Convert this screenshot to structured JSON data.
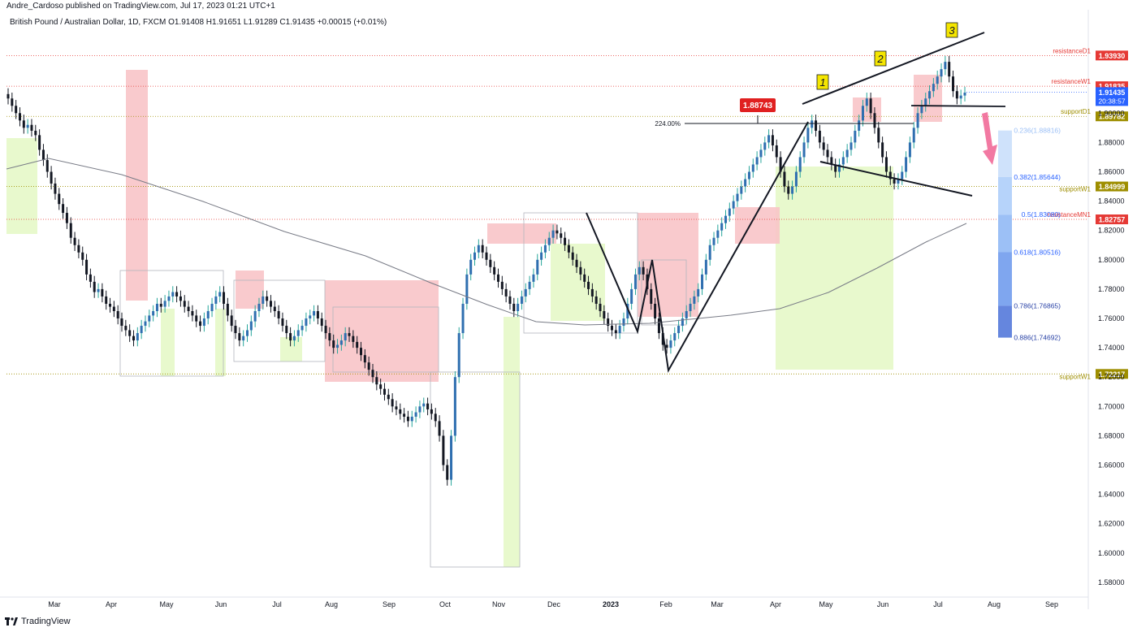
{
  "header": {
    "published": "Andre_Cardoso published on TradingView.com, Jul 17, 2023 01:21 UTC+1",
    "symbol_line": "British Pound / Australian Dollar, 1D, FXCM  O1.91408  H1.91651  L1.91289  C1.91435  +0.00015 (+0.01%)"
  },
  "footer": {
    "brand": "TradingView"
  },
  "colors": {
    "up": "#26a69a",
    "down": "#131722",
    "resistance": "#e53935",
    "support": "#9e8e00",
    "res_zone": "#f8c4c8",
    "sup_zone": "#e6f8c8",
    "ma": "#787b86",
    "last": "#2962ff",
    "fib": "#2962ff"
  },
  "chart_data": {
    "type": "candlestick",
    "title": "British Pound / Australian Dollar, 1D, FXCM",
    "ylim": [
      1.57,
      1.955
    ],
    "y_ticks": [
      "1.58000",
      "1.60000",
      "1.62000",
      "1.64000",
      "1.66000",
      "1.68000",
      "1.70000",
      "1.72000",
      "1.74000",
      "1.76000",
      "1.78000",
      "1.80000",
      "1.82000",
      "1.84000",
      "1.86000",
      "1.88000",
      "1.90000"
    ],
    "x_ticks": [
      "Mar",
      "Apr",
      "May",
      "Jun",
      "Jul",
      "Aug",
      "Sep",
      "Oct",
      "Nov",
      "Dec",
      "2023",
      "Feb",
      "Mar",
      "Apr",
      "May",
      "Jun",
      "Jul",
      "Aug",
      "Sep"
    ],
    "levels": [
      {
        "label": "resistanceD1",
        "value": 1.9393,
        "tag": "1.93930",
        "kind": "resistance"
      },
      {
        "label": "resistanceW1",
        "value": 1.91835,
        "tag": "1.91835",
        "kind": "resistance"
      },
      {
        "label": "supportD1",
        "value": 1.89782,
        "tag": "1.89782",
        "kind": "support"
      },
      {
        "label": "supportW1",
        "value": 1.84999,
        "tag": "1.84999",
        "kind": "support"
      },
      {
        "label": "resistanceMN1",
        "value": 1.82757,
        "tag": "1.82757",
        "kind": "resistance"
      },
      {
        "label": "supportW1",
        "value": 1.72217,
        "tag": "1.72217",
        "kind": "support"
      }
    ],
    "last_price": {
      "value": 1.91435,
      "tag": "1.91435",
      "countdown": "20:38:57"
    },
    "annotation": {
      "value": 1.88743,
      "tag": "1.88743",
      "percent": "224.00%"
    },
    "fib_levels": [
      {
        "label": "0.236(1.88816)",
        "value": 1.88816
      },
      {
        "label": "0.382(1.85644)",
        "value": 1.85644
      },
      {
        "label": "0.5(1.83080)",
        "value": 1.8308
      },
      {
        "label": "0.618(1.80516)",
        "value": 1.80516
      },
      {
        "label": "0.786(1.76865)",
        "value": 1.76865
      },
      {
        "label": "0.886(1.74692)",
        "value": 1.74692
      }
    ],
    "wave_labels": [
      "1",
      "2",
      "3"
    ],
    "closes": [
      1.91,
      1.905,
      1.9,
      1.895,
      1.89,
      1.892,
      1.888,
      1.885,
      1.875,
      1.868,
      1.86,
      1.852,
      1.845,
      1.838,
      1.832,
      1.825,
      1.815,
      1.81,
      1.805,
      1.8,
      1.79,
      1.785,
      1.778,
      1.78,
      1.775,
      1.77,
      1.768,
      1.765,
      1.76,
      1.755,
      1.752,
      1.748,
      1.745,
      1.75,
      1.755,
      1.758,
      1.762,
      1.765,
      1.77,
      1.768,
      1.772,
      1.775,
      1.778,
      1.775,
      1.772,
      1.768,
      1.765,
      1.762,
      1.758,
      1.755,
      1.76,
      1.765,
      1.77,
      1.775,
      1.778,
      1.77,
      1.762,
      1.755,
      1.75,
      1.745,
      1.748,
      1.752,
      1.758,
      1.765,
      1.77,
      1.775,
      1.772,
      1.768,
      1.765,
      1.76,
      1.755,
      1.75,
      1.745,
      1.748,
      1.752,
      1.755,
      1.76,
      1.762,
      1.765,
      1.76,
      1.755,
      1.75,
      1.745,
      1.74,
      1.742,
      1.745,
      1.75,
      1.748,
      1.744,
      1.74,
      1.735,
      1.73,
      1.725,
      1.72,
      1.715,
      1.712,
      1.708,
      1.705,
      1.7,
      1.698,
      1.695,
      1.693,
      1.69,
      1.693,
      1.696,
      1.7,
      1.702,
      1.698,
      1.695,
      1.69,
      1.68,
      1.66,
      1.65,
      1.68,
      1.72,
      1.75,
      1.77,
      1.79,
      1.8,
      1.805,
      1.81,
      1.805,
      1.8,
      1.795,
      1.79,
      1.785,
      1.78,
      1.775,
      1.77,
      1.765,
      1.77,
      1.775,
      1.78,
      1.785,
      1.79,
      1.8,
      1.805,
      1.81,
      1.815,
      1.82,
      1.818,
      1.815,
      1.81,
      1.805,
      1.8,
      1.795,
      1.79,
      1.785,
      1.78,
      1.775,
      1.77,
      1.765,
      1.76,
      1.755,
      1.752,
      1.75,
      1.755,
      1.76,
      1.77,
      1.78,
      1.79,
      1.795,
      1.79,
      1.78,
      1.77,
      1.76,
      1.75,
      1.742,
      1.74,
      1.745,
      1.75,
      1.755,
      1.76,
      1.765,
      1.77,
      1.775,
      1.78,
      1.79,
      1.8,
      1.81,
      1.815,
      1.82,
      1.825,
      1.83,
      1.835,
      1.84,
      1.845,
      1.85,
      1.855,
      1.86,
      1.865,
      1.87,
      1.875,
      1.88,
      1.885,
      1.878,
      1.87,
      1.86,
      1.85,
      1.845,
      1.85,
      1.86,
      1.87,
      1.88,
      1.89,
      1.895,
      1.888,
      1.88,
      1.875,
      1.87,
      1.865,
      1.86,
      1.865,
      1.87,
      1.875,
      1.88,
      1.888,
      1.895,
      1.905,
      1.91,
      1.9,
      1.89,
      1.88,
      1.87,
      1.86,
      1.855,
      1.852,
      1.855,
      1.86,
      1.87,
      1.88,
      1.89,
      1.9,
      1.905,
      1.91,
      1.915,
      1.92,
      1.925,
      1.93,
      1.935,
      1.925,
      1.915,
      1.91,
      1.912,
      1.914
    ]
  }
}
